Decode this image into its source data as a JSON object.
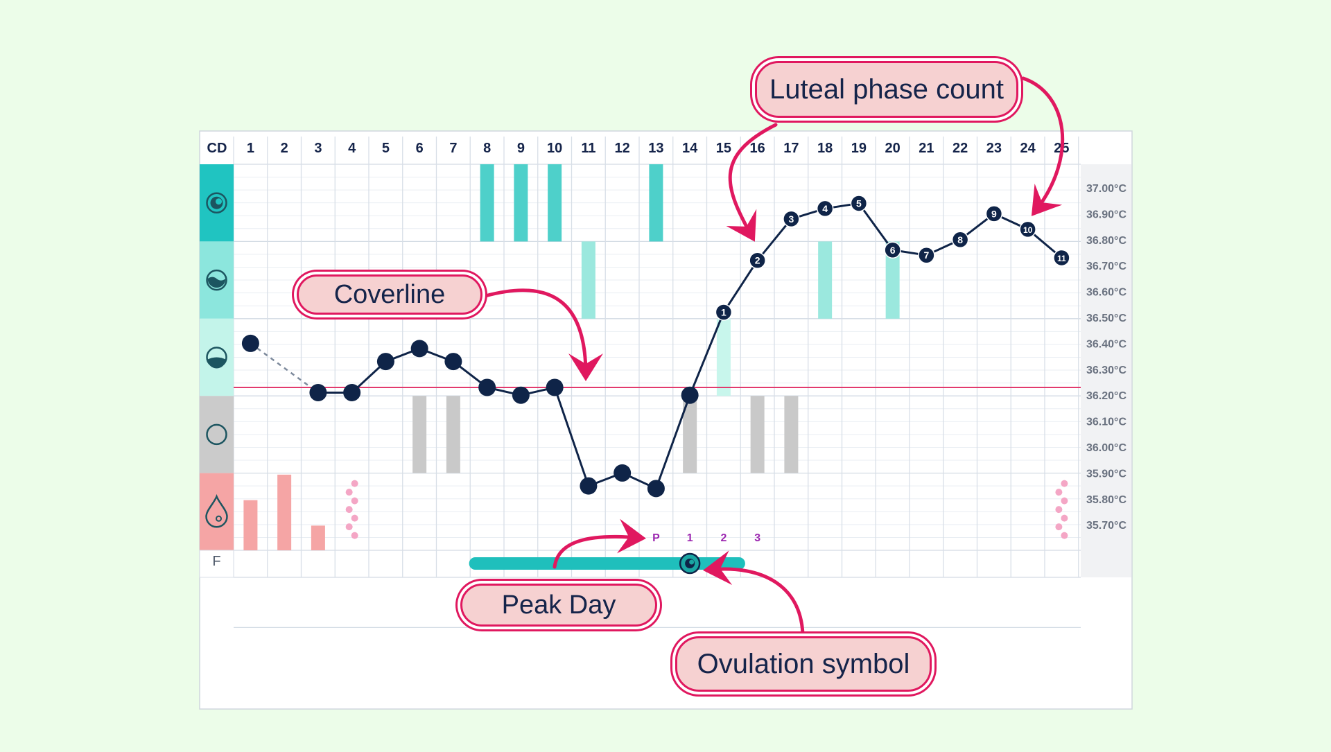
{
  "chart_data": {
    "type": "line",
    "title": "",
    "row_header_label": "CD",
    "fertile_row_label": "F",
    "x": [
      1,
      2,
      3,
      4,
      5,
      6,
      7,
      8,
      9,
      10,
      11,
      12,
      13,
      14,
      15,
      16,
      17,
      18,
      19,
      20,
      21,
      22,
      23,
      24,
      25
    ],
    "ylim": [
      35.6,
      37.05
    ],
    "y_ticks": [
      37.0,
      36.9,
      36.8,
      36.7,
      36.6,
      36.5,
      36.4,
      36.3,
      36.2,
      36.1,
      36.0,
      35.9,
      35.8,
      35.7
    ],
    "y_tick_labels": [
      "37.00°C",
      "36.90°C",
      "36.80°C",
      "36.70°C",
      "36.60°C",
      "36.50°C",
      "36.40°C",
      "36.30°C",
      "36.20°C",
      "36.10°C",
      "36.00°C",
      "35.90°C",
      "35.80°C",
      "35.70°C"
    ],
    "series": [
      {
        "values": [
          36.4,
          null,
          36.21,
          36.21,
          36.33,
          36.38,
          36.33,
          36.23,
          36.2,
          36.23,
          35.85,
          35.9,
          35.84,
          36.2,
          36.52,
          36.72,
          36.88,
          36.92,
          36.94,
          36.76,
          36.74,
          36.8,
          36.9,
          36.84,
          36.73
        ],
        "luteal_count_labels": {
          "15": "1",
          "16": "2",
          "17": "3",
          "18": "4",
          "19": "5",
          "20": "6",
          "21": "7",
          "22": "8",
          "23": "9",
          "24": "10",
          "25": "11"
        }
      }
    ],
    "coverline": 36.23,
    "observation_rows": [
      {
        "icon": "egg-white-mucus-icon",
        "color": "#20c4c1",
        "days": [
          8,
          9,
          10,
          13
        ],
        "bar_color": "#4ed0ca"
      },
      {
        "icon": "creamy-mucus-icon",
        "color": "#8ce6dd",
        "days": [
          11,
          18,
          20
        ],
        "bar_color": "#9be8de"
      },
      {
        "icon": "sticky-mucus-icon",
        "color": "#c3f4ea",
        "days": [
          15
        ],
        "bar_color": "#c8f6ec"
      },
      {
        "icon": "dry-icon",
        "color": "#cbcbcb",
        "days": [
          6,
          7,
          14,
          16,
          17
        ],
        "bar_color": "#c9c9c9"
      },
      {
        "icon": "bleeding-drop-icon",
        "color": "#f5a5a5",
        "bleeding": [
          {
            "day": 1,
            "level": 0.65
          },
          {
            "day": 2,
            "level": 0.98
          },
          {
            "day": 3,
            "level": 0.32
          }
        ],
        "spotting_days": [
          4,
          25
        ],
        "bar_color": "#f5a5a5"
      }
    ],
    "peak_labels": [
      {
        "day": 13,
        "text": "P"
      },
      {
        "day": 14,
        "text": "1"
      },
      {
        "day": 15,
        "text": "2"
      },
      {
        "day": 16,
        "text": "3"
      }
    ],
    "fertile_window": {
      "start_day": 8,
      "end_day": 15,
      "color": "#1fbfbc"
    },
    "ovulation_day": 14,
    "line_color": "#0f2448",
    "coverline_color": "#e23a6e",
    "accent_color": "#e0185f",
    "peak_label_color": "#9c27b0"
  },
  "callouts": {
    "luteal": "Luteal phase count",
    "coverline": "Coverline",
    "peak": "Peak Day",
    "ovulation": "Ovulation symbol"
  }
}
